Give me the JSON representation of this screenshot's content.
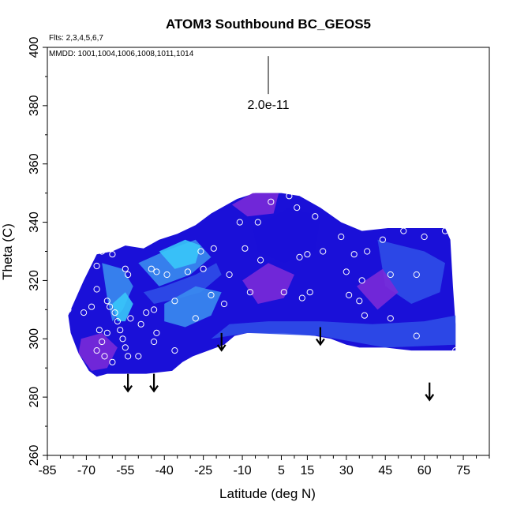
{
  "chart_data": {
    "type": "heatmap",
    "title": "ATOM3 Southbound BC_GEOS5",
    "flights_label": "Flts: 2,3,4,5,6,7",
    "dates_label": "MMDD: 1001,1004,1006,1008,1011,1014",
    "xlabel": "Latitude (deg N)",
    "ylabel": "Theta (C)",
    "xlim": [
      -85,
      85
    ],
    "ylim": [
      260,
      400
    ],
    "x_tick_labels": [
      "-85",
      "-70",
      "-55",
      "-40",
      "-25",
      "-10",
      "5",
      "15",
      "30",
      "45",
      "60",
      "75"
    ],
    "x_tick_values": [
      -85,
      -70,
      -55,
      -40,
      -25,
      -10,
      5,
      15,
      30,
      45,
      60,
      75
    ],
    "x_minor_ticks": [
      -80,
      -75,
      -65,
      -60,
      -50,
      -45,
      -35,
      -30,
      -20,
      -15,
      -5,
      0,
      10,
      20,
      25,
      35,
      40,
      50,
      55,
      65,
      70,
      80,
      85
    ],
    "y_tick_labels": [
      "260",
      "280",
      "300",
      "320",
      "340",
      "360",
      "380",
      "400"
    ],
    "y_tick_values": [
      260,
      280,
      300,
      320,
      340,
      360,
      380,
      400
    ],
    "scale_label": "2.0e-11",
    "colors": {
      "deep_blue": "#1a10d8",
      "mid_blue": "#2f4ee8",
      "light_blue": "#3a8cf0",
      "cyan": "#38c8f8",
      "purple": "#7a2ad8",
      "marker": "#ffffff",
      "arrow": "#000000"
    },
    "field_extent": [
      [
        -77,
        308
      ],
      [
        -74,
        314
      ],
      [
        -71,
        320
      ],
      [
        -66,
        329
      ],
      [
        -60,
        330
      ],
      [
        -55,
        332
      ],
      [
        -48,
        331
      ],
      [
        -42,
        334
      ],
      [
        -35,
        336
      ],
      [
        -28,
        339
      ],
      [
        -22,
        343
      ],
      [
        -18,
        345
      ],
      [
        -12,
        348
      ],
      [
        -5,
        350
      ],
      [
        5,
        350
      ],
      [
        12,
        349
      ],
      [
        20,
        345
      ],
      [
        28,
        340
      ],
      [
        36,
        337
      ],
      [
        46,
        338
      ],
      [
        56,
        338
      ],
      [
        68,
        338
      ],
      [
        70,
        334
      ],
      [
        71,
        318
      ],
      [
        72,
        305
      ],
      [
        72,
        296
      ],
      [
        55,
        296
      ],
      [
        45,
        297
      ],
      [
        35,
        297
      ],
      [
        30,
        298
      ],
      [
        24,
        300
      ],
      [
        18,
        301
      ],
      [
        12,
        301.5
      ],
      [
        6,
        302
      ],
      [
        0,
        302
      ],
      [
        -8,
        302
      ],
      [
        -13,
        301
      ],
      [
        -17,
        298
      ],
      [
        -23,
        296
      ],
      [
        -29,
        294
      ],
      [
        -33,
        292
      ],
      [
        -37,
        289
      ],
      [
        -47,
        288
      ],
      [
        -55,
        288
      ],
      [
        -62,
        288
      ],
      [
        -66,
        287
      ],
      [
        -69,
        289
      ],
      [
        -73,
        295
      ],
      [
        -76,
        302
      ]
    ],
    "field_patches": [
      {
        "level": "mid_blue",
        "points": [
          [
            -48,
            316
          ],
          [
            -40,
            318
          ],
          [
            -28,
            322
          ],
          [
            -20,
            326
          ],
          [
            -18,
            322
          ],
          [
            -26,
            316
          ],
          [
            -34,
            314
          ],
          [
            -44,
            312
          ]
        ]
      },
      {
        "level": "mid_blue",
        "points": [
          [
            -22,
            300
          ],
          [
            -8,
            302
          ],
          [
            20,
            301
          ],
          [
            45,
            297
          ],
          [
            72,
            298
          ],
          [
            72,
            308
          ],
          [
            60,
            306
          ],
          [
            40,
            305
          ],
          [
            20,
            306
          ],
          [
            0,
            306
          ],
          [
            -15,
            305
          ]
        ]
      },
      {
        "level": "mid_blue",
        "points": [
          [
            42,
            334
          ],
          [
            60,
            330
          ],
          [
            68,
            326
          ],
          [
            66,
            316
          ],
          [
            55,
            312
          ],
          [
            45,
            318
          ]
        ]
      },
      {
        "level": "light_blue",
        "points": [
          [
            -64,
            326
          ],
          [
            -56,
            324
          ],
          [
            -52,
            318
          ],
          [
            -56,
            310
          ],
          [
            -60,
            306
          ],
          [
            -62,
            314
          ]
        ]
      },
      {
        "level": "light_blue",
        "points": [
          [
            -50,
            326
          ],
          [
            -40,
            330
          ],
          [
            -28,
            334
          ],
          [
            -22,
            328
          ],
          [
            -30,
            322
          ],
          [
            -42,
            318
          ]
        ]
      },
      {
        "level": "light_blue",
        "points": [
          [
            -40,
            312
          ],
          [
            -28,
            318
          ],
          [
            -18,
            316
          ],
          [
            -22,
            308
          ],
          [
            -32,
            304
          ],
          [
            -40,
            306
          ]
        ]
      },
      {
        "level": "cyan",
        "points": [
          [
            -42,
            330
          ],
          [
            -32,
            334
          ],
          [
            -26,
            332
          ],
          [
            -28,
            326
          ],
          [
            -36,
            324
          ]
        ]
      },
      {
        "level": "cyan",
        "points": [
          [
            -60,
            312
          ],
          [
            -55,
            316
          ],
          [
            -52,
            312
          ],
          [
            -55,
            306
          ],
          [
            -58,
            306
          ]
        ]
      },
      {
        "level": "purple",
        "points": [
          [
            -72,
            300
          ],
          [
            -64,
            302
          ],
          [
            -58,
            297
          ],
          [
            -62,
            290
          ],
          [
            -68,
            289
          ],
          [
            -73,
            295
          ]
        ]
      },
      {
        "level": "purple",
        "points": [
          [
            -14,
            346
          ],
          [
            -6,
            350
          ],
          [
            4,
            350
          ],
          [
            2,
            343
          ],
          [
            -8,
            342
          ]
        ]
      },
      {
        "level": "purple",
        "points": [
          [
            -10,
            320
          ],
          [
            0,
            326
          ],
          [
            10,
            322
          ],
          [
            6,
            314
          ],
          [
            -4,
            312
          ]
        ]
      },
      {
        "level": "purple",
        "points": [
          [
            34,
            318
          ],
          [
            44,
            324
          ],
          [
            50,
            316
          ],
          [
            42,
            310
          ]
        ]
      },
      {
        "level": "deep_blue",
        "points": [
          [
            -6,
            338
          ],
          [
            8,
            345
          ],
          [
            20,
            342
          ],
          [
            18,
            330
          ],
          [
            6,
            326
          ],
          [
            -4,
            330
          ]
        ]
      }
    ],
    "sample_points": [
      [
        -77,
        310
      ],
      [
        -71,
        309
      ],
      [
        -68,
        311
      ],
      [
        -66,
        317
      ],
      [
        -66,
        325
      ],
      [
        -64,
        330
      ],
      [
        -62,
        313
      ],
      [
        -61,
        311
      ],
      [
        -59,
        309
      ],
      [
        -58,
        306
      ],
      [
        -57,
        303
      ],
      [
        -56,
        300
      ],
      [
        -55,
        297
      ],
      [
        -54,
        294
      ],
      [
        -54,
        287
      ],
      [
        -60,
        292
      ],
      [
        -63,
        294
      ],
      [
        -66,
        296
      ],
      [
        -64,
        299
      ],
      [
        -62,
        302
      ],
      [
        -65,
        303
      ],
      [
        -60,
        329
      ],
      [
        -55,
        324
      ],
      [
        -54,
        322
      ],
      [
        -53,
        307
      ],
      [
        -49,
        305
      ],
      [
        -47,
        309
      ],
      [
        -44,
        310
      ],
      [
        -43,
        302
      ],
      [
        -44,
        299
      ],
      [
        -50,
        294
      ],
      [
        -45,
        324
      ],
      [
        -43,
        323
      ],
      [
        -39,
        322
      ],
      [
        -36,
        313
      ],
      [
        -36,
        296
      ],
      [
        -31,
        323
      ],
      [
        -28,
        307
      ],
      [
        -26,
        330
      ],
      [
        -25,
        324
      ],
      [
        -22,
        315
      ],
      [
        -21,
        331
      ],
      [
        -17,
        312
      ],
      [
        -15,
        322
      ],
      [
        -11,
        340
      ],
      [
        -9,
        331
      ],
      [
        -7,
        316
      ],
      [
        -4,
        340
      ],
      [
        -3,
        327
      ],
      [
        1,
        347
      ],
      [
        6,
        316
      ],
      [
        8,
        349
      ],
      [
        11,
        345
      ],
      [
        12,
        328
      ],
      [
        13,
        314
      ],
      [
        15,
        329
      ],
      [
        16,
        316
      ],
      [
        18,
        342
      ],
      [
        21,
        330
      ],
      [
        25,
        346
      ],
      [
        28,
        335
      ],
      [
        30,
        323
      ],
      [
        31,
        315
      ],
      [
        33,
        329
      ],
      [
        35,
        313
      ],
      [
        36,
        320
      ],
      [
        37,
        308
      ],
      [
        38,
        330
      ],
      [
        44,
        334
      ],
      [
        47,
        322
      ],
      [
        47,
        307
      ],
      [
        52,
        337
      ],
      [
        57,
        301
      ],
      [
        57,
        322
      ],
      [
        60,
        335
      ],
      [
        68,
        337
      ],
      [
        72,
        296
      ],
      [
        72,
        336
      ]
    ],
    "arrows": [
      {
        "lat": -54,
        "theta": 288
      },
      {
        "lat": -44,
        "theta": 288
      },
      {
        "lat": -18,
        "theta": 302
      },
      {
        "lat": 20,
        "theta": 304
      },
      {
        "lat": 62,
        "theta": 285
      }
    ],
    "scale_bar": {
      "lat": 0,
      "theta_top": 397,
      "theta_bottom": 384,
      "value": "2.0e-11"
    }
  }
}
